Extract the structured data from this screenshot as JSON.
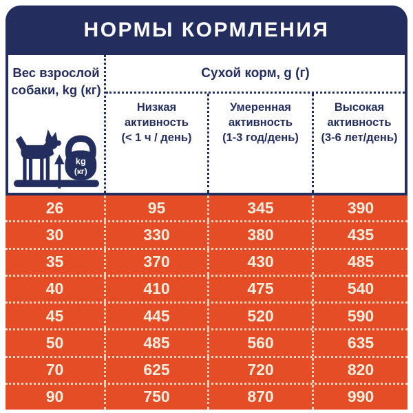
{
  "title": "НОРМЫ КОРМЛЕНИЯ",
  "colors": {
    "navy": "#242E5E",
    "orange": "#E54D26",
    "cream_text": "#F8EDDE",
    "white": "#FFFFFF"
  },
  "header": {
    "weight_lines": [
      "Вес взрослой",
      "собаки, kg (кг)"
    ],
    "dry_food": "Сухой корм, g (г)",
    "activity_columns": [
      {
        "lines": [
          "Низкая",
          "активность",
          "(< 1 ч / день)"
        ]
      },
      {
        "lines": [
          "Умеренная",
          "активность",
          "(1-3 год/день)"
        ]
      },
      {
        "lines": [
          "Высокая",
          "активность",
          "(3-6 лет/день)"
        ]
      }
    ]
  },
  "icon": {
    "kettlebell_line1": "kg",
    "kettlebell_line2": "(кг)"
  },
  "chart_data": {
    "type": "table",
    "title": "НОРМЫ КОРМЛЕНИЯ",
    "column_group_header": "Сухой корм, g (г)",
    "columns": [
      "Вес взрослой собаки, kg (кг)",
      "Низкая активность (< 1 ч / день)",
      "Умеренная активность (1-3 год/день)",
      "Высокая активность (3-6 лет/день)"
    ],
    "rows": [
      [
        26,
        95,
        345,
        390
      ],
      [
        30,
        330,
        380,
        435
      ],
      [
        35,
        370,
        430,
        485
      ],
      [
        40,
        410,
        475,
        540
      ],
      [
        45,
        445,
        520,
        590
      ],
      [
        50,
        485,
        560,
        635
      ],
      [
        70,
        625,
        720,
        820
      ],
      [
        90,
        750,
        870,
        990
      ]
    ]
  }
}
